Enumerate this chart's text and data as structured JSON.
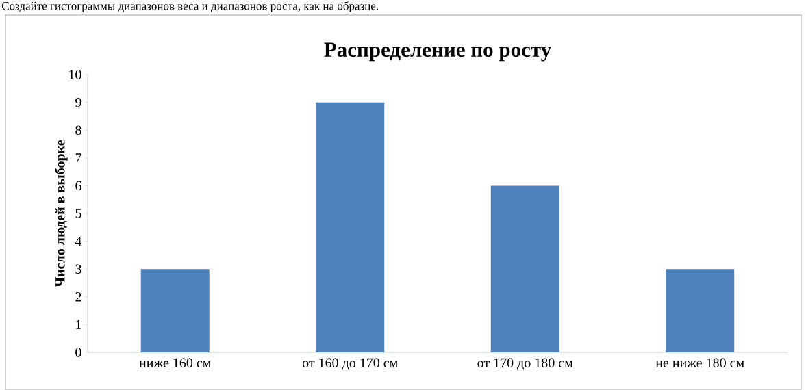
{
  "chart_data": {
    "type": "bar",
    "title": "Распределение по росту",
    "ylabel": "Число людей в выборке",
    "annotations": [
      "Создайте гистограммы диапазонов веса и диапазонов роста, как на образце."
    ],
    "categories": [
      "ниже 160 см",
      "от 160 до 170 см",
      "от 170 до 180 см",
      "не ниже 180 см"
    ],
    "values": [
      3,
      9,
      6,
      3
    ],
    "color": "#4f81bd",
    "ylim": [
      0,
      10
    ],
    "yticks": [
      0,
      1,
      2,
      3,
      4,
      5,
      6,
      7,
      8,
      9,
      10
    ],
    "grid": false
  }
}
